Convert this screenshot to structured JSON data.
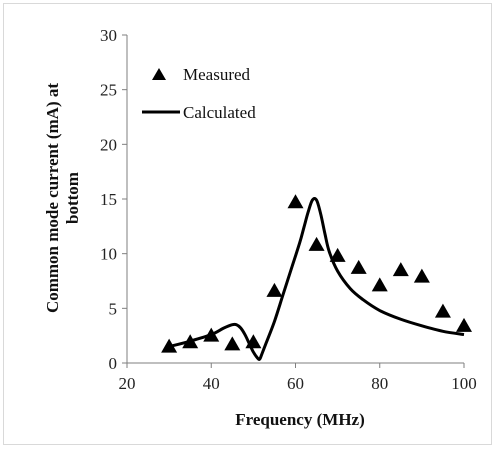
{
  "chart_data": {
    "type": "scatter",
    "title": "",
    "xlabel": "Frequency (MHz)",
    "ylabel_lines": [
      "Common mode current (mA) at",
      "bottom"
    ],
    "xlim": [
      20,
      100
    ],
    "ylim": [
      0,
      30
    ],
    "x_ticks": [
      20,
      40,
      60,
      80,
      100
    ],
    "y_ticks": [
      0,
      5,
      10,
      15,
      20,
      25,
      30
    ],
    "grid": false,
    "legend_position": "top-left",
    "series": [
      {
        "name": "Measured",
        "kind": "scatter",
        "marker": "triangle",
        "color": "#000000",
        "x": [
          30,
          35,
          40,
          45,
          50,
          55,
          60,
          65,
          70,
          75,
          80,
          85,
          90,
          95,
          100
        ],
        "y": [
          1.5,
          1.9,
          2.5,
          1.7,
          1.9,
          6.6,
          14.7,
          10.8,
          9.8,
          8.7,
          7.1,
          8.5,
          7.9,
          4.7,
          3.4
        ]
      },
      {
        "name": "Calculated",
        "kind": "line",
        "color": "#000000",
        "x": [
          30,
          35,
          40,
          43,
          45,
          46,
          47,
          48,
          49,
          50,
          51,
          51.5,
          52,
          53,
          55,
          57,
          59,
          61,
          62,
          63,
          64,
          65,
          66,
          67,
          68,
          70,
          73,
          76,
          80,
          85,
          90,
          95,
          100
        ],
        "y": [
          1.5,
          2.0,
          2.6,
          3.2,
          3.5,
          3.5,
          3.2,
          2.6,
          1.8,
          1.0,
          0.45,
          0.35,
          0.8,
          1.8,
          3.8,
          6.2,
          8.6,
          11.0,
          12.4,
          13.8,
          14.9,
          14.9,
          13.6,
          11.8,
          10.2,
          8.4,
          6.8,
          5.8,
          4.8,
          4.0,
          3.4,
          2.9,
          2.6
        ]
      }
    ]
  }
}
